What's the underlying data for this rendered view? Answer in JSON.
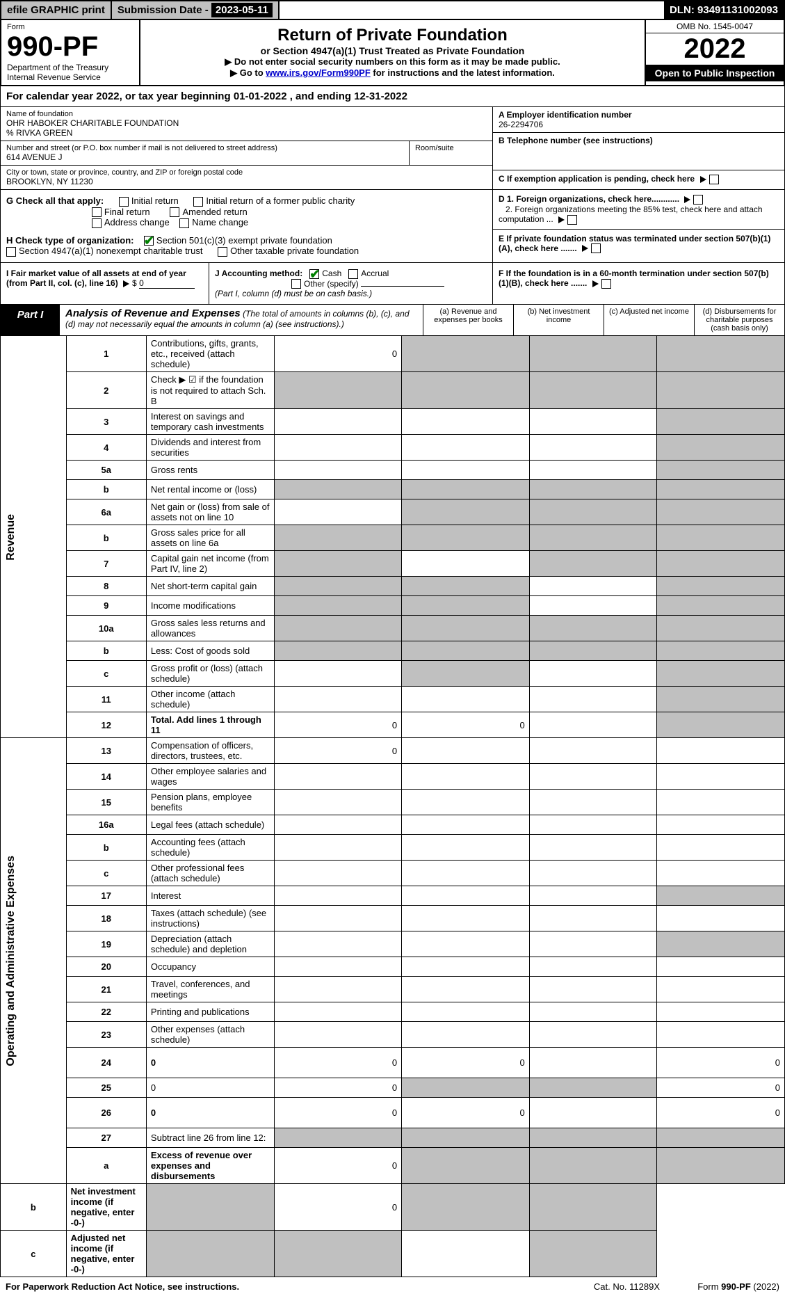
{
  "topbar": {
    "efile": "efile GRAPHIC print",
    "sub_label": "Submission Date - ",
    "sub_date": "2023-05-11",
    "dln_label": "DLN: ",
    "dln": "93491131002093"
  },
  "header": {
    "form_word": "Form",
    "form_no": "990-PF",
    "dept1": "Department of the Treasury",
    "dept2": "Internal Revenue Service",
    "title": "Return of Private Foundation",
    "subtitle": "or Section 4947(a)(1) Trust Treated as Private Foundation",
    "note1": "▶ Do not enter social security numbers on this form as it may be made public.",
    "note2_pre": "▶ Go to ",
    "note2_link": "www.irs.gov/Form990PF",
    "note2_post": " for instructions and the latest information.",
    "omb": "OMB No. 1545-0047",
    "year": "2022",
    "inspect": "Open to Public Inspection"
  },
  "calyear": {
    "text_pre": "For calendar year 2022, or tax year beginning ",
    "begin": "01-01-2022",
    "mid": " , and ending ",
    "end": "12-31-2022"
  },
  "entity": {
    "name_lbl": "Name of foundation",
    "name": "OHR HABOKER CHARITABLE FOUNDATION",
    "care_of": "% RIVKA GREEN",
    "addr_lbl": "Number and street (or P.O. box number if mail is not delivered to street address)",
    "addr": "614 AVENUE J",
    "room_lbl": "Room/suite",
    "city_lbl": "City or town, state or province, country, and ZIP or foreign postal code",
    "city": "BROOKLYN, NY  11230",
    "ein_lbl": "A Employer identification number",
    "ein": "26-2294706",
    "phone_lbl": "B Telephone number (see instructions)",
    "exempt_lbl": "C If exemption application is pending, check here"
  },
  "g": {
    "label": "G Check all that apply:",
    "initial": "Initial return",
    "initial_former": "Initial return of a former public charity",
    "final": "Final return",
    "amended": "Amended return",
    "addr_change": "Address change",
    "name_change": "Name change"
  },
  "h": {
    "label": "H Check type of organization:",
    "s501": "Section 501(c)(3) exempt private foundation",
    "s4947": "Section 4947(a)(1) nonexempt charitable trust",
    "other_tax": "Other taxable private foundation"
  },
  "d": {
    "d1": "D 1. Foreign organizations, check here............",
    "d2": "2. Foreign organizations meeting the 85% test, check here and attach computation ..."
  },
  "e": "E  If private foundation status was terminated under section 507(b)(1)(A), check here .......",
  "f": "F  If the foundation is in a 60-month termination under section 507(b)(1)(B), check here .......",
  "i": {
    "label": "I Fair market value of all assets at end of year (from Part II, col. (c), line 16)",
    "val": "0"
  },
  "j": {
    "label": "J Accounting method:",
    "cash": "Cash",
    "accrual": "Accrual",
    "other": "Other (specify)",
    "note": "(Part I, column (d) must be on cash basis.)"
  },
  "part1": {
    "label": "Part I",
    "title": "Analysis of Revenue and Expenses",
    "note": " (The total of amounts in columns (b), (c), and (d) may not necessarily equal the amounts in column (a) (see instructions).)",
    "col_a": "(a)   Revenue and expenses per books",
    "col_b": "(b)   Net investment income",
    "col_c": "(c)   Adjusted net income",
    "col_d": "(d)   Disbursements for charitable purposes (cash basis only)"
  },
  "side_labels": {
    "revenue": "Revenue",
    "expenses": "Operating and Administrative Expenses"
  },
  "rows": [
    {
      "n": "1",
      "d": "Contributions, gifts, grants, etc., received (attach schedule)",
      "a": "0",
      "grey": [
        "b",
        "c",
        "d"
      ]
    },
    {
      "n": "2",
      "d": "Check ▶ ☑ if the foundation is not required to attach Sch. B",
      "grey": [
        "a",
        "b",
        "c",
        "d"
      ],
      "bold_not": true
    },
    {
      "n": "3",
      "d": "Interest on savings and temporary cash investments",
      "grey": [
        "d"
      ]
    },
    {
      "n": "4",
      "d": "Dividends and interest from securities",
      "grey": [
        "d"
      ]
    },
    {
      "n": "5a",
      "d": "Gross rents",
      "grey": [
        "d"
      ]
    },
    {
      "n": "b",
      "d": "Net rental income or (loss)",
      "grey": [
        "a",
        "b",
        "c",
        "d"
      ],
      "inset": true
    },
    {
      "n": "6a",
      "d": "Net gain or (loss) from sale of assets not on line 10",
      "grey": [
        "b",
        "c",
        "d"
      ]
    },
    {
      "n": "b",
      "d": "Gross sales price for all assets on line 6a",
      "grey": [
        "a",
        "b",
        "c",
        "d"
      ],
      "inset": true
    },
    {
      "n": "7",
      "d": "Capital gain net income (from Part IV, line 2)",
      "grey": [
        "a",
        "c",
        "d"
      ]
    },
    {
      "n": "8",
      "d": "Net short-term capital gain",
      "grey": [
        "a",
        "b",
        "d"
      ]
    },
    {
      "n": "9",
      "d": "Income modifications",
      "grey": [
        "a",
        "b",
        "d"
      ]
    },
    {
      "n": "10a",
      "d": "Gross sales less returns and allowances",
      "grey": [
        "a",
        "b",
        "c",
        "d"
      ],
      "inset": true
    },
    {
      "n": "b",
      "d": "Less: Cost of goods sold",
      "grey": [
        "a",
        "b",
        "c",
        "d"
      ],
      "inset": true
    },
    {
      "n": "c",
      "d": "Gross profit or (loss) (attach schedule)",
      "grey": [
        "b",
        "d"
      ]
    },
    {
      "n": "11",
      "d": "Other income (attach schedule)",
      "grey": [
        "d"
      ]
    },
    {
      "n": "12",
      "d": "Total. Add lines 1 through 11",
      "a": "0",
      "b": "0",
      "grey": [
        "d"
      ],
      "bold": true
    },
    {
      "n": "13",
      "d": "Compensation of officers, directors, trustees, etc.",
      "a": "0"
    },
    {
      "n": "14",
      "d": "Other employee salaries and wages"
    },
    {
      "n": "15",
      "d": "Pension plans, employee benefits"
    },
    {
      "n": "16a",
      "d": "Legal fees (attach schedule)"
    },
    {
      "n": "b",
      "d": "Accounting fees (attach schedule)"
    },
    {
      "n": "c",
      "d": "Other professional fees (attach schedule)"
    },
    {
      "n": "17",
      "d": "Interest",
      "grey": [
        "d"
      ]
    },
    {
      "n": "18",
      "d": "Taxes (attach schedule) (see instructions)"
    },
    {
      "n": "19",
      "d": "Depreciation (attach schedule) and depletion",
      "grey": [
        "d"
      ]
    },
    {
      "n": "20",
      "d": "Occupancy"
    },
    {
      "n": "21",
      "d": "Travel, conferences, and meetings"
    },
    {
      "n": "22",
      "d": "Printing and publications"
    },
    {
      "n": "23",
      "d": "Other expenses (attach schedule)"
    },
    {
      "n": "24",
      "d": "0",
      "a": "0",
      "b": "0",
      "bold": true,
      "twoline": true
    },
    {
      "n": "25",
      "d": "0",
      "a": "0",
      "grey": [
        "b",
        "c"
      ]
    },
    {
      "n": "26",
      "d": "0",
      "a": "0",
      "b": "0",
      "bold": true,
      "twoline": true
    },
    {
      "n": "27",
      "d": "Subtract line 26 from line 12:",
      "grey": [
        "a",
        "b",
        "c",
        "d"
      ]
    },
    {
      "n": "a",
      "d": "Excess of revenue over expenses and disbursements",
      "a": "0",
      "grey": [
        "b",
        "c",
        "d"
      ],
      "bold": true
    },
    {
      "n": "b",
      "d": "Net investment income (if negative, enter -0-)",
      "b": "0",
      "grey": [
        "a",
        "c",
        "d"
      ],
      "bold": true
    },
    {
      "n": "c",
      "d": "Adjusted net income (if negative, enter -0-)",
      "grey": [
        "a",
        "b",
        "d"
      ],
      "bold": true
    }
  ],
  "footer": {
    "left": "For Paperwork Reduction Act Notice, see instructions.",
    "mid": "Cat. No. 11289X",
    "right": "Form 990-PF (2022)"
  }
}
